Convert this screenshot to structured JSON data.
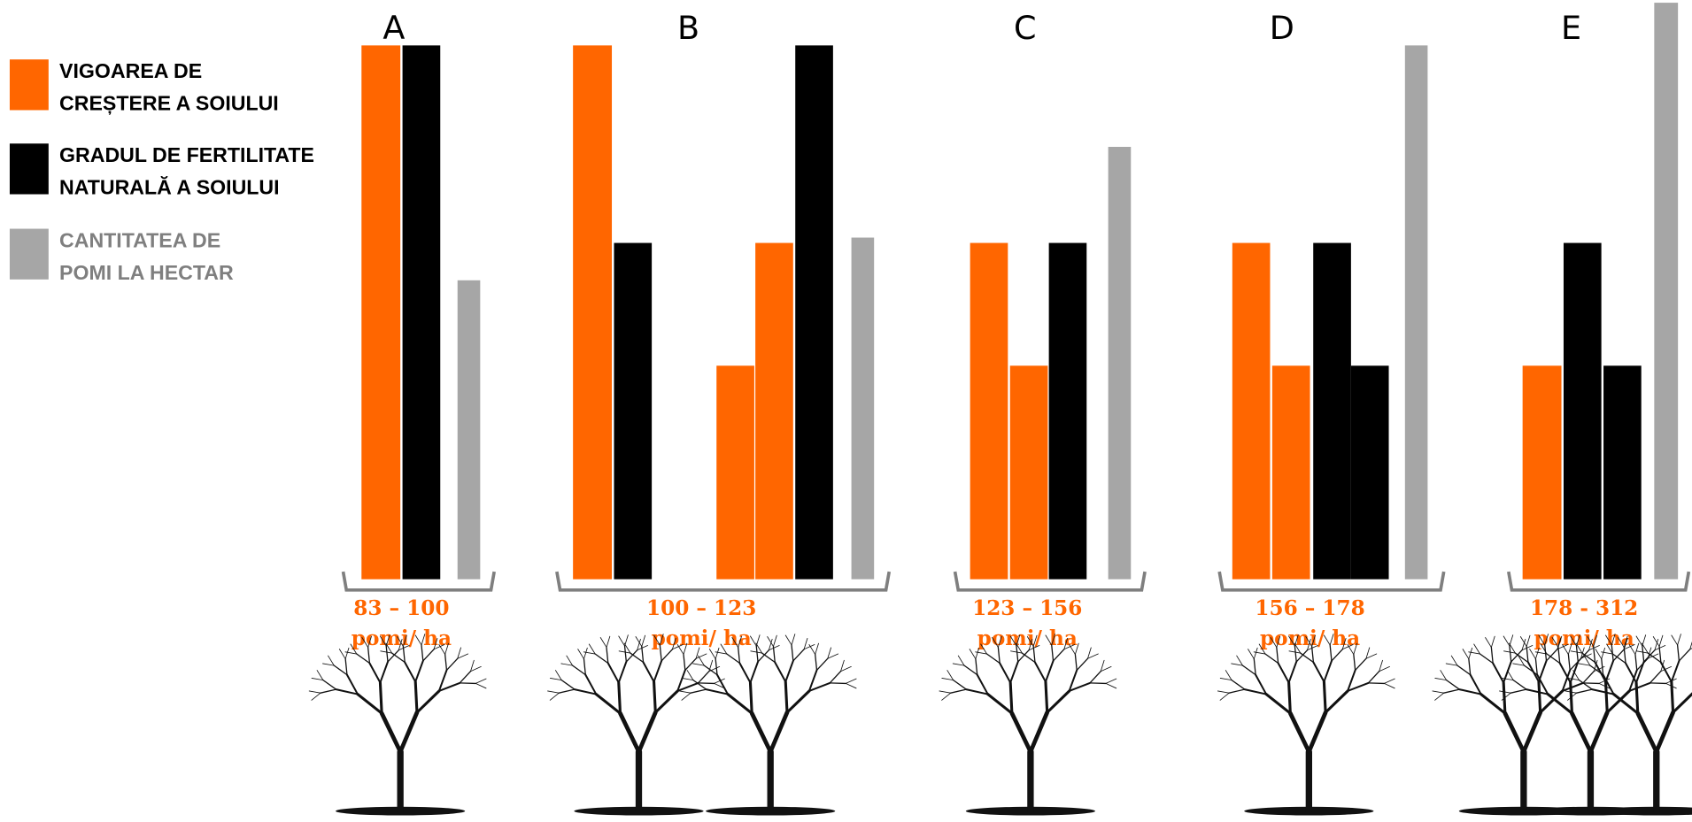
{
  "legend": [
    {
      "name": "VIGOAREA DE CREȘTERE A SOIULUI",
      "lines": [
        "VIGOAREA DE",
        "CREȘTERE A SOIULUI"
      ],
      "color": "#ff6600"
    },
    {
      "name": "GRADUL DE FERTILITATE NATURALĂ A SOIULUI",
      "lines": [
        "GRADUL DE FERTILITATE",
        "NATURALĂ A SOIULUI"
      ],
      "color": "#000000"
    },
    {
      "name": "CANTITATEA DE POMI LA HECTAR",
      "lines": [
        "CANTITATEA DE",
        "POMI LA HECTAR"
      ],
      "color": "#a6a6a6"
    }
  ],
  "groups": [
    {
      "label": "A",
      "range": "83 – 100",
      "unit": "pomi/ ha",
      "bars": [
        {
          "series": 0,
          "value": 100
        },
        {
          "series": 1,
          "value": 100
        },
        {
          "series": 2,
          "value": 56
        }
      ]
    },
    {
      "label": "B",
      "range": "100 – 123",
      "unit": "pomi/ ha",
      "bars": [
        {
          "series": 0,
          "value": 100
        },
        {
          "series": 1,
          "value": 63
        },
        {
          "series": 0,
          "value": 40
        },
        {
          "series": 0,
          "value": 63
        },
        {
          "series": 1,
          "value": 100
        },
        {
          "series": 2,
          "value": 64
        }
      ]
    },
    {
      "label": "C",
      "range": "123 – 156",
      "unit": "pomi/ ha",
      "bars": [
        {
          "series": 0,
          "value": 63
        },
        {
          "series": 0,
          "value": 40
        },
        {
          "series": 1,
          "value": 63
        },
        {
          "series": 2,
          "value": 81
        }
      ]
    },
    {
      "label": "D",
      "range": "156 – 178",
      "unit": "pomi/ ha",
      "bars": [
        {
          "series": 0,
          "value": 63
        },
        {
          "series": 0,
          "value": 40
        },
        {
          "series": 1,
          "value": 63
        },
        {
          "series": 1,
          "value": 40
        },
        {
          "series": 2,
          "value": 100
        }
      ]
    },
    {
      "label": "E",
      "range": "178 - 312",
      "unit": "pomi/ ha",
      "bars": [
        {
          "series": 0,
          "value": 40
        },
        {
          "series": 1,
          "value": 63
        },
        {
          "series": 1,
          "value": 40
        },
        {
          "series": 2,
          "value": 108
        }
      ]
    }
  ]
}
